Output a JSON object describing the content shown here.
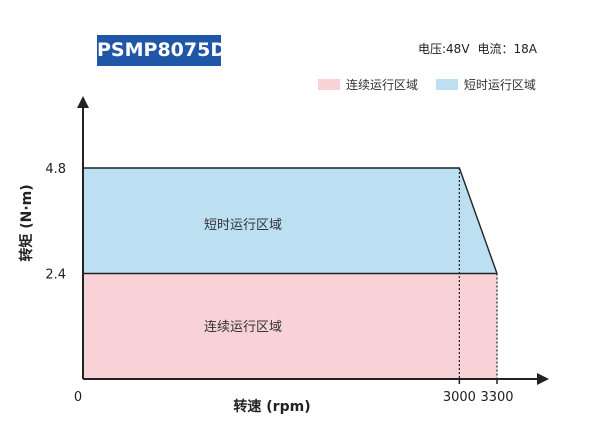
{
  "model": "PSMP8075D",
  "specs": {
    "voltage": "电压:48V",
    "current": "电流：18A"
  },
  "legend": [
    {
      "label": "连续运行区域",
      "color": "#f8d2d6"
    },
    {
      "label": "短时运行区域",
      "color": "#bcdff2"
    }
  ],
  "chart_data": {
    "type": "area",
    "xlabel": "转速 (rpm)",
    "ylabel": "转矩 (N·m)",
    "x_ticks": [
      "0",
      "3000",
      "3300"
    ],
    "y_ticks": [
      "4.8",
      "2.4"
    ],
    "xlim": [
      0,
      3300
    ],
    "ylim": [
      0,
      4.8
    ],
    "series": [
      {
        "name": "连续运行区域",
        "x": [
          0,
          3300
        ],
        "y": [
          2.4,
          2.4
        ],
        "color": "#f8d2d6"
      },
      {
        "name": "短时运行区域",
        "x": [
          0,
          3000,
          3300
        ],
        "y": [
          4.8,
          4.8,
          2.4
        ],
        "color": "#bcdff2"
      }
    ],
    "region_labels": [
      "短时运行区域",
      "连续运行区域"
    ],
    "grid": false,
    "legend_position": "top-right"
  }
}
